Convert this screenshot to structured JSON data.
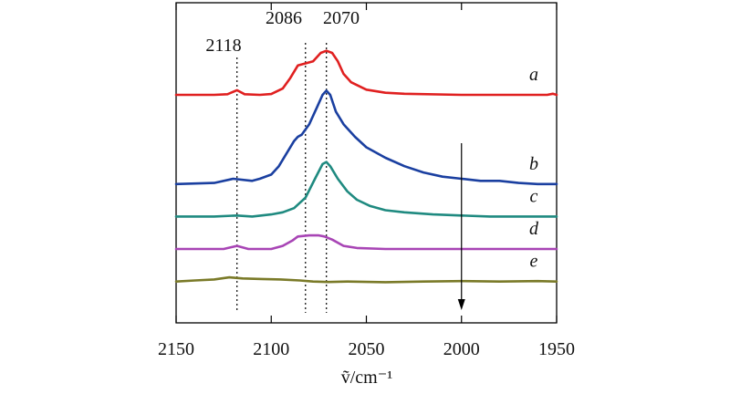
{
  "chart_data": {
    "type": "line",
    "title": "",
    "xlabel": "ṽ/cm⁻¹",
    "ylabel": "",
    "xlim": [
      2150,
      1950
    ],
    "x_reversed": true,
    "x_ticks": [
      2150,
      2100,
      2050,
      2000,
      1950
    ],
    "x_tick_labels": [
      "2150",
      "2100",
      "2050",
      "2000",
      "1950"
    ],
    "y_ticks": [],
    "grid": false,
    "legend": "none",
    "peak_annotations": [
      {
        "label": "2118",
        "x": 2118
      },
      {
        "label": "2086",
        "x": 2082
      },
      {
        "label": "2070",
        "x": 2071
      }
    ],
    "arrow": {
      "x": 2000,
      "direction": "down",
      "from_series": "b",
      "to_series": "e"
    },
    "series": [
      {
        "name": "a",
        "color": "#e02020",
        "baseline": 0.0,
        "points": [
          [
            2150,
            0
          ],
          [
            2130,
            0
          ],
          [
            2123,
            0.3
          ],
          [
            2118,
            2.2
          ],
          [
            2114,
            0.3
          ],
          [
            2106,
            0
          ],
          [
            2100,
            0.4
          ],
          [
            2094,
            3
          ],
          [
            2090,
            8
          ],
          [
            2086,
            14
          ],
          [
            2082,
            15
          ],
          [
            2078,
            16
          ],
          [
            2074,
            20
          ],
          [
            2071,
            21
          ],
          [
            2068,
            20
          ],
          [
            2065,
            16
          ],
          [
            2062,
            10
          ],
          [
            2058,
            6
          ],
          [
            2050,
            2.5
          ],
          [
            2040,
            1
          ],
          [
            2030,
            0.5
          ],
          [
            2000,
            0
          ],
          [
            1955,
            0
          ],
          [
            1952,
            0.5
          ],
          [
            1950,
            0
          ]
        ]
      },
      {
        "name": "b",
        "color": "#1a3fa0",
        "baseline": -42.5,
        "points": [
          [
            2150,
            -42.5
          ],
          [
            2130,
            -42
          ],
          [
            2120,
            -40
          ],
          [
            2110,
            -41
          ],
          [
            2106,
            -40
          ],
          [
            2100,
            -38
          ],
          [
            2096,
            -34
          ],
          [
            2092,
            -28
          ],
          [
            2088,
            -22
          ],
          [
            2086,
            -20
          ],
          [
            2084,
            -19
          ],
          [
            2080,
            -14
          ],
          [
            2076,
            -6
          ],
          [
            2073,
            0
          ],
          [
            2071,
            2
          ],
          [
            2069,
            0
          ],
          [
            2066,
            -8
          ],
          [
            2062,
            -14
          ],
          [
            2056,
            -20
          ],
          [
            2050,
            -25
          ],
          [
            2040,
            -30
          ],
          [
            2030,
            -34
          ],
          [
            2020,
            -37
          ],
          [
            2010,
            -39
          ],
          [
            2000,
            -40
          ],
          [
            1990,
            -41
          ],
          [
            1980,
            -41
          ],
          [
            1970,
            -42
          ],
          [
            1960,
            -42.5
          ],
          [
            1950,
            -42.5
          ]
        ]
      },
      {
        "name": "c",
        "color": "#1f8a80",
        "baseline": -58,
        "points": [
          [
            2150,
            -58
          ],
          [
            2130,
            -58
          ],
          [
            2118,
            -57.5
          ],
          [
            2110,
            -58
          ],
          [
            2100,
            -57
          ],
          [
            2094,
            -56
          ],
          [
            2088,
            -54
          ],
          [
            2082,
            -49
          ],
          [
            2077,
            -40
          ],
          [
            2073,
            -33
          ],
          [
            2071,
            -32
          ],
          [
            2069,
            -34
          ],
          [
            2065,
            -40
          ],
          [
            2060,
            -46
          ],
          [
            2055,
            -50
          ],
          [
            2048,
            -53
          ],
          [
            2040,
            -55
          ],
          [
            2030,
            -56
          ],
          [
            2015,
            -57
          ],
          [
            2000,
            -57.5
          ],
          [
            1985,
            -58
          ],
          [
            1950,
            -58
          ]
        ]
      },
      {
        "name": "d",
        "color": "#a845b5",
        "baseline": -73.5,
        "points": [
          [
            2150,
            -73.5
          ],
          [
            2125,
            -73.5
          ],
          [
            2118,
            -72
          ],
          [
            2112,
            -73.5
          ],
          [
            2100,
            -73.5
          ],
          [
            2094,
            -72
          ],
          [
            2089,
            -69.5
          ],
          [
            2086,
            -67.5
          ],
          [
            2080,
            -67
          ],
          [
            2075,
            -67
          ],
          [
            2072,
            -67.5
          ],
          [
            2068,
            -69
          ],
          [
            2062,
            -72
          ],
          [
            2055,
            -73
          ],
          [
            2040,
            -73.5
          ],
          [
            1950,
            -73.5
          ]
        ]
      },
      {
        "name": "e",
        "color": "#7a7a28",
        "baseline": -89,
        "points": [
          [
            2150,
            -89
          ],
          [
            2140,
            -88.5
          ],
          [
            2130,
            -88
          ],
          [
            2122,
            -87
          ],
          [
            2115,
            -87.5
          ],
          [
            2105,
            -87.8
          ],
          [
            2095,
            -88
          ],
          [
            2085,
            -88.5
          ],
          [
            2078,
            -89
          ],
          [
            2070,
            -89.2
          ],
          [
            2060,
            -89
          ],
          [
            2040,
            -89.3
          ],
          [
            2020,
            -89
          ],
          [
            2000,
            -88.8
          ],
          [
            1980,
            -89
          ],
          [
            1960,
            -88.8
          ],
          [
            1950,
            -89
          ]
        ]
      }
    ]
  }
}
